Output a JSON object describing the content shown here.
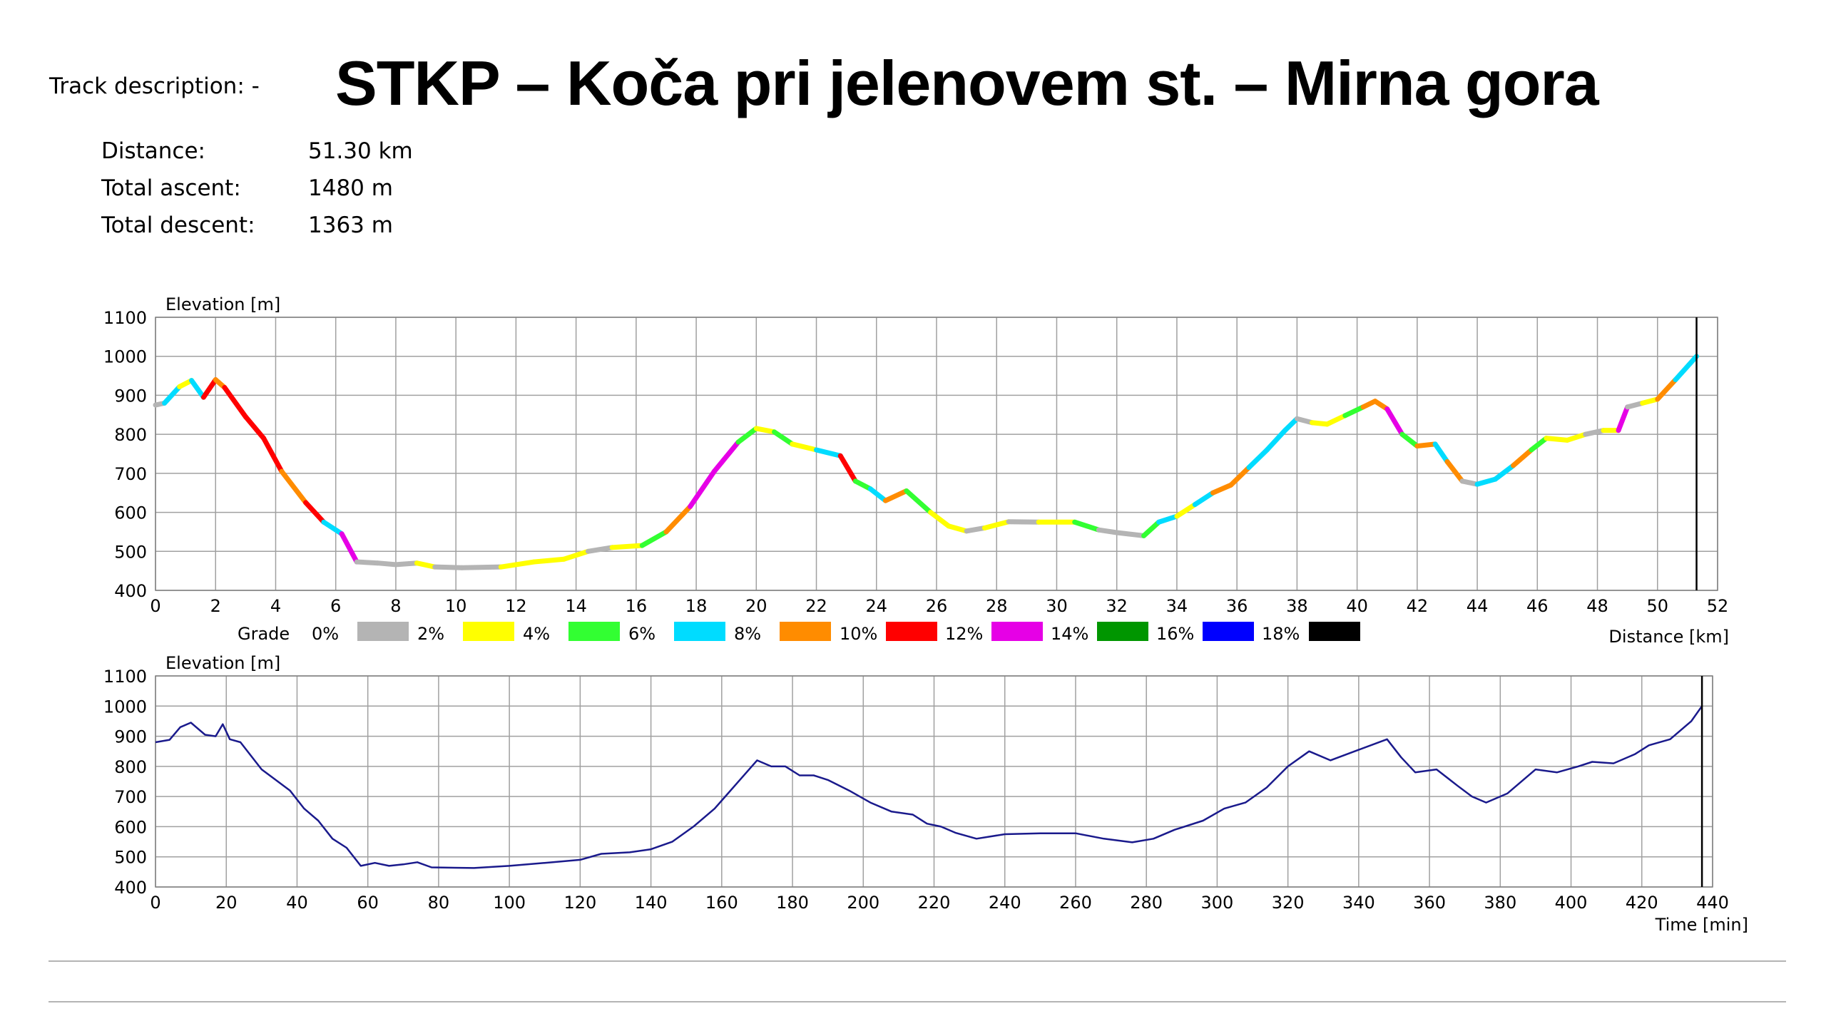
{
  "header": {
    "track_description_label": "Track description:",
    "track_description_value": "-",
    "title": "STKP – Koča pri jelenovem st. – Mirna gora"
  },
  "stats": [
    {
      "label": "Distance:",
      "value": "51.30 km"
    },
    {
      "label": "Total ascent:",
      "value": "1480 m"
    },
    {
      "label": "Total descent:",
      "value": "1363 m"
    }
  ],
  "colors": {
    "grid": "#a0a0a0",
    "time_line": "#1a1a8c",
    "end_marker": "#000000"
  },
  "chart_data": [
    {
      "type": "line",
      "ylabel": "Elevation [m]",
      "xlabel": "Distance [km]",
      "xlim": [
        0,
        52
      ],
      "ylim": [
        400,
        1100
      ],
      "x_ticks": [
        0,
        2,
        4,
        6,
        8,
        10,
        12,
        14,
        16,
        18,
        20,
        22,
        24,
        26,
        28,
        30,
        32,
        34,
        36,
        38,
        40,
        42,
        44,
        46,
        48,
        50,
        52
      ],
      "y_ticks": [
        400,
        500,
        600,
        700,
        800,
        900,
        1000,
        1100
      ],
      "grid": true,
      "end_marker_x": 51.3,
      "color_by": "grade",
      "legend": {
        "title": "Grade",
        "entries": [
          {
            "label": "0%",
            "color": "#b4b4b4"
          },
          {
            "label": "2%",
            "color": "#ffff00"
          },
          {
            "label": "4%",
            "color": "#32ff32"
          },
          {
            "label": "6%",
            "color": "#00dcff"
          },
          {
            "label": "8%",
            "color": "#ff8c00"
          },
          {
            "label": "10%",
            "color": "#ff0000"
          },
          {
            "label": "12%",
            "color": "#e600e6"
          },
          {
            "label": "14%",
            "color": "#009600"
          },
          {
            "label": "16%",
            "color": "#0000ff"
          },
          {
            "label": "18%",
            "color": "#000000"
          }
        ]
      },
      "x": [
        0,
        0.3,
        0.8,
        1.2,
        1.6,
        2.0,
        2.3,
        3.0,
        3.6,
        4.2,
        5.0,
        5.6,
        6.2,
        6.7,
        7.4,
        8.0,
        8.7,
        9.3,
        10.2,
        11.5,
        12.6,
        13.6,
        14.4,
        15.2,
        16.2,
        17.0,
        17.8,
        18.6,
        19.4,
        20.0,
        20.6,
        21.2,
        22.0,
        22.8,
        23.3,
        23.8,
        24.3,
        25.0,
        25.8,
        26.4,
        27.0,
        27.6,
        28.4,
        29.4,
        30.6,
        31.4,
        32.0,
        32.9,
        33.4,
        34.0,
        34.6,
        35.2,
        35.8,
        36.4,
        37.0,
        37.6,
        38.0,
        38.5,
        39.0,
        39.6,
        40.2,
        40.6,
        41.0,
        41.5,
        42.0,
        42.6,
        43.0,
        43.5,
        44.0,
        44.6,
        45.2,
        45.8,
        46.3,
        47.0,
        47.6,
        48.2,
        48.7,
        49.0,
        49.5,
        50.0,
        50.6,
        51.3
      ],
      "y": [
        875,
        880,
        922,
        938,
        895,
        940,
        920,
        845,
        790,
        705,
        625,
        575,
        545,
        473,
        470,
        466,
        470,
        460,
        458,
        460,
        473,
        480,
        500,
        510,
        515,
        550,
        615,
        705,
        780,
        815,
        806,
        775,
        760,
        745,
        680,
        660,
        630,
        655,
        600,
        565,
        552,
        560,
        576,
        575,
        575,
        555,
        548,
        540,
        575,
        590,
        620,
        650,
        670,
        715,
        760,
        810,
        840,
        830,
        826,
        848,
        870,
        885,
        865,
        800,
        770,
        775,
        730,
        680,
        672,
        685,
        720,
        760,
        790,
        785,
        800,
        810,
        810,
        870,
        880,
        890,
        940,
        1000
      ],
      "grade_colors": [
        "#b4b4b4",
        "#00dcff",
        "#ffff00",
        "#00dcff",
        "#ff0000",
        "#ff8c00",
        "#ff0000",
        "#ff0000",
        "#ff0000",
        "#ff8c00",
        "#ff0000",
        "#00dcff",
        "#e600e6",
        "#b4b4b4",
        "#b4b4b4",
        "#b4b4b4",
        "#ffff00",
        "#b4b4b4",
        "#b4b4b4",
        "#ffff00",
        "#ffff00",
        "#ffff00",
        "#b4b4b4",
        "#ffff00",
        "#32ff32",
        "#ff8c00",
        "#e600e6",
        "#e600e6",
        "#32ff32",
        "#ffff00",
        "#32ff32",
        "#ffff00",
        "#00dcff",
        "#ff0000",
        "#32ff32",
        "#00dcff",
        "#ff8c00",
        "#32ff32",
        "#ffff00",
        "#ffff00",
        "#b4b4b4",
        "#ffff00",
        "#b4b4b4",
        "#ffff00",
        "#32ff32",
        "#b4b4b4",
        "#b4b4b4",
        "#32ff32",
        "#00dcff",
        "#ffff00",
        "#00dcff",
        "#ff8c00",
        "#ff8c00",
        "#00dcff",
        "#00dcff",
        "#00dcff",
        "#b4b4b4",
        "#ffff00",
        "#ffff00",
        "#32ff32",
        "#ff8c00",
        "#ff8c00",
        "#e600e6",
        "#32ff32",
        "#ff8c00",
        "#00dcff",
        "#ff8c00",
        "#b4b4b4",
        "#00dcff",
        "#00dcff",
        "#ff8c00",
        "#32ff32",
        "#ffff00",
        "#ffff00",
        "#b4b4b4",
        "#ffff00",
        "#e600e6",
        "#b4b4b4",
        "#ffff00",
        "#ff8c00",
        "#00dcff"
      ]
    },
    {
      "type": "line",
      "ylabel": "Elevation [m]",
      "xlabel": "Time [min]",
      "xlim": [
        0,
        440
      ],
      "ylim": [
        400,
        1100
      ],
      "x_ticks": [
        0,
        20,
        40,
        60,
        80,
        100,
        120,
        140,
        160,
        180,
        200,
        220,
        240,
        260,
        280,
        300,
        320,
        340,
        360,
        380,
        400,
        420,
        440
      ],
      "y_ticks": [
        400,
        500,
        600,
        700,
        800,
        900,
        1000,
        1100
      ],
      "grid": true,
      "end_marker_x": 437,
      "series": [
        {
          "x": [
            0,
            4,
            7,
            10,
            14,
            17,
            19,
            21,
            24,
            30,
            38,
            42,
            46,
            50,
            54,
            58,
            62,
            66,
            70,
            74,
            78,
            90,
            100,
            110,
            120,
            126,
            134,
            140,
            146,
            152,
            158,
            164,
            170,
            174,
            178,
            182,
            186,
            190,
            196,
            202,
            208,
            214,
            218,
            222,
            226,
            232,
            240,
            250,
            260,
            268,
            276,
            282,
            288,
            296,
            302,
            308,
            314,
            320,
            326,
            332,
            340,
            348,
            352,
            356,
            362,
            368,
            372,
            376,
            382,
            390,
            396,
            402,
            406,
            412,
            418,
            422,
            428,
            434,
            437
          ],
          "y": [
            880,
            888,
            930,
            945,
            905,
            900,
            940,
            890,
            880,
            790,
            720,
            660,
            620,
            560,
            530,
            470,
            480,
            470,
            475,
            482,
            465,
            463,
            470,
            480,
            490,
            510,
            515,
            525,
            550,
            600,
            660,
            740,
            820,
            800,
            800,
            770,
            770,
            755,
            720,
            680,
            650,
            640,
            610,
            600,
            580,
            560,
            575,
            578,
            578,
            560,
            548,
            560,
            590,
            620,
            660,
            680,
            730,
            800,
            850,
            820,
            855,
            890,
            830,
            780,
            790,
            735,
            700,
            680,
            710,
            790,
            780,
            800,
            815,
            810,
            840,
            870,
            890,
            950,
            1000
          ]
        }
      ]
    }
  ]
}
